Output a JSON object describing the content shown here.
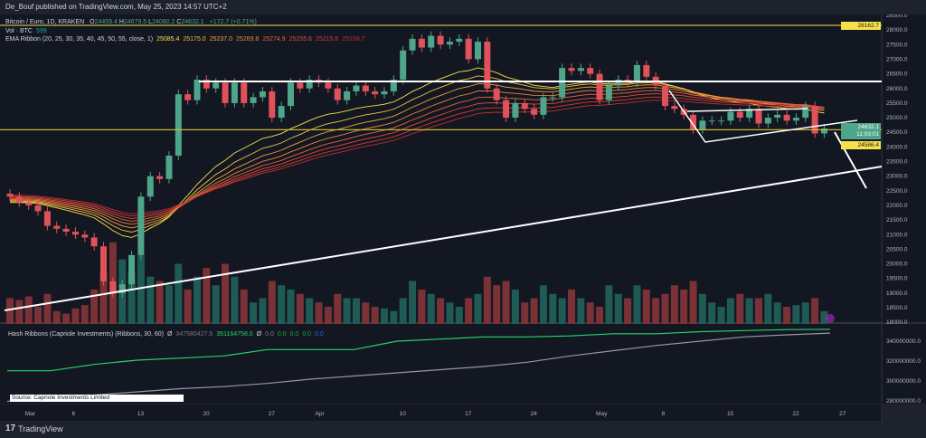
{
  "header": {
    "published": "De_Bouf published on TradingView.com, May 25, 2023 14:57 UTC+2"
  },
  "legend": {
    "symbol": "Bitcoin / Euro, 1D, KRAKEN",
    "o_label": "O",
    "o": "24459.4",
    "h_label": "H",
    "h": "24679.5",
    "l_label": "L",
    "l": "24080.2",
    "c_label": "C",
    "c": "24632.1",
    "change": "+172.7 (+0.71%)",
    "vol_label": "Vol · BTC",
    "vol": "599",
    "ema_label": "EMA Ribbon (20, 25, 30, 35, 40, 45, 50, 55, close, 1)",
    "ema_values": [
      "25085.4",
      "25175.0",
      "25237.0",
      "25269.8",
      "25274.9",
      "25255.6",
      "25215.6",
      "25158.7"
    ],
    "hash_label": "Hash Ribbons (Capriole Investments) (Ribbons, 30, 60)",
    "hash_icon": "Ø",
    "hash_v1": "347580427.5",
    "hash_v2": "351164758.0",
    "hash_zero": [
      "0.0",
      "0.0",
      "0.0",
      "0.0",
      "0.0"
    ],
    "source": "Source: Capriole Investments Limited"
  },
  "colors": {
    "up": "#4fa58a",
    "down": "#e0525a",
    "bg": "#131722",
    "ema": [
      "#f7e14a",
      "#f5c242",
      "#f2a33c",
      "#ef8436",
      "#e9653a",
      "#e24a3b",
      "#d33a34",
      "#b7312e"
    ],
    "hash_fast": "#26d36b",
    "hash_slow": "#9598a1"
  },
  "price_axis": [
    "28500.0",
    "28000.0",
    "27500.0",
    "27000.0",
    "26500.0",
    "26000.0",
    "25500.0",
    "25000.0",
    "24500.0",
    "24000.0",
    "23500.0",
    "23000.0",
    "22500.0",
    "22000.0",
    "21500.0",
    "21000.0",
    "20500.0",
    "20000.0",
    "19500.0",
    "19000.0",
    "18500.0",
    "18000.0"
  ],
  "hash_axis": [
    "340000000.0",
    "320000000.0",
    "300000000.0",
    "280000000.0"
  ],
  "tags": {
    "high_line": "28162.7",
    "last": "24632.1",
    "countdown": "11:03:01",
    "level": "24586.4"
  },
  "time_axis": [
    {
      "label": "Mar",
      "day": 2
    },
    {
      "label": "6",
      "day": 7
    },
    {
      "label": "13",
      "day": 14
    },
    {
      "label": "20",
      "day": 21
    },
    {
      "label": "27",
      "day": 28
    },
    {
      "label": "Apr",
      "day": 33
    },
    {
      "label": "10",
      "day": 42
    },
    {
      "label": "17",
      "day": 49
    },
    {
      "label": "24",
      "day": 56
    },
    {
      "label": "May",
      "day": 63
    },
    {
      "label": "8",
      "day": 70
    },
    {
      "label": "15",
      "day": 77
    },
    {
      "label": "22",
      "day": 84
    },
    {
      "label": "27",
      "day": 89
    }
  ],
  "chart_data": {
    "type": "candlestick",
    "first_open": 22400,
    "last_open": 24459.4,
    "closes": [
      22300,
      22100,
      22000,
      21800,
      21300,
      21200,
      21100,
      21000,
      20900,
      20600,
      19400,
      19000,
      19300,
      20300,
      22300,
      23000,
      22900,
      23700,
      25800,
      25600,
      26300,
      26000,
      26200,
      25500,
      26200,
      25500,
      25700,
      25900,
      25000,
      25400,
      26200,
      26000,
      26300,
      26200,
      26000,
      25600,
      25900,
      26100,
      25900,
      25800,
      25900,
      26300,
      27300,
      27700,
      27400,
      27800,
      27500,
      27600,
      27700,
      27000,
      27600,
      26000,
      25600,
      25000,
      25500,
      25300,
      25100,
      25700,
      25700,
      26700,
      26600,
      26700,
      26500,
      25600,
      26100,
      26300,
      26200,
      26800,
      26400,
      26100,
      25400,
      25300,
      25100,
      24600,
      24900,
      24900,
      24900,
      25200,
      25000,
      25300,
      24800,
      25000,
      25100,
      24900,
      25000,
      25400,
      24459.4,
      24632.1
    ],
    "volume": [
      0.3,
      0.28,
      0.32,
      0.2,
      0.35,
      0.15,
      0.12,
      0.18,
      0.22,
      0.4,
      0.6,
      0.95,
      0.75,
      0.6,
      0.8,
      0.55,
      0.5,
      0.45,
      0.7,
      0.4,
      0.55,
      0.65,
      0.45,
      0.7,
      0.55,
      0.4,
      0.25,
      0.3,
      0.5,
      0.45,
      0.4,
      0.35,
      0.3,
      0.25,
      0.2,
      0.35,
      0.3,
      0.3,
      0.25,
      0.2,
      0.18,
      0.15,
      0.3,
      0.5,
      0.4,
      0.35,
      0.3,
      0.25,
      0.2,
      0.3,
      0.35,
      0.55,
      0.45,
      0.5,
      0.4,
      0.25,
      0.3,
      0.45,
      0.35,
      0.3,
      0.4,
      0.3,
      0.25,
      0.2,
      0.45,
      0.35,
      0.3,
      0.45,
      0.4,
      0.3,
      0.35,
      0.45,
      0.4,
      0.5,
      0.35,
      0.25,
      0.2,
      0.3,
      0.35,
      0.3,
      0.3,
      0.35,
      0.25,
      0.2,
      0.22,
      0.25,
      0.3,
      0.15
    ],
    "hash_fast_keys": [
      312,
      312,
      318,
      322,
      324,
      326,
      332,
      332,
      332,
      340,
      342,
      344,
      344,
      345,
      347,
      347,
      349,
      350,
      351,
      351.2
    ],
    "hash_slow_keys": [
      283,
      287,
      289,
      292,
      295,
      297,
      300,
      304,
      307,
      310,
      313,
      316,
      320,
      326,
      331,
      336,
      340,
      344,
      346,
      347.6
    ]
  }
}
